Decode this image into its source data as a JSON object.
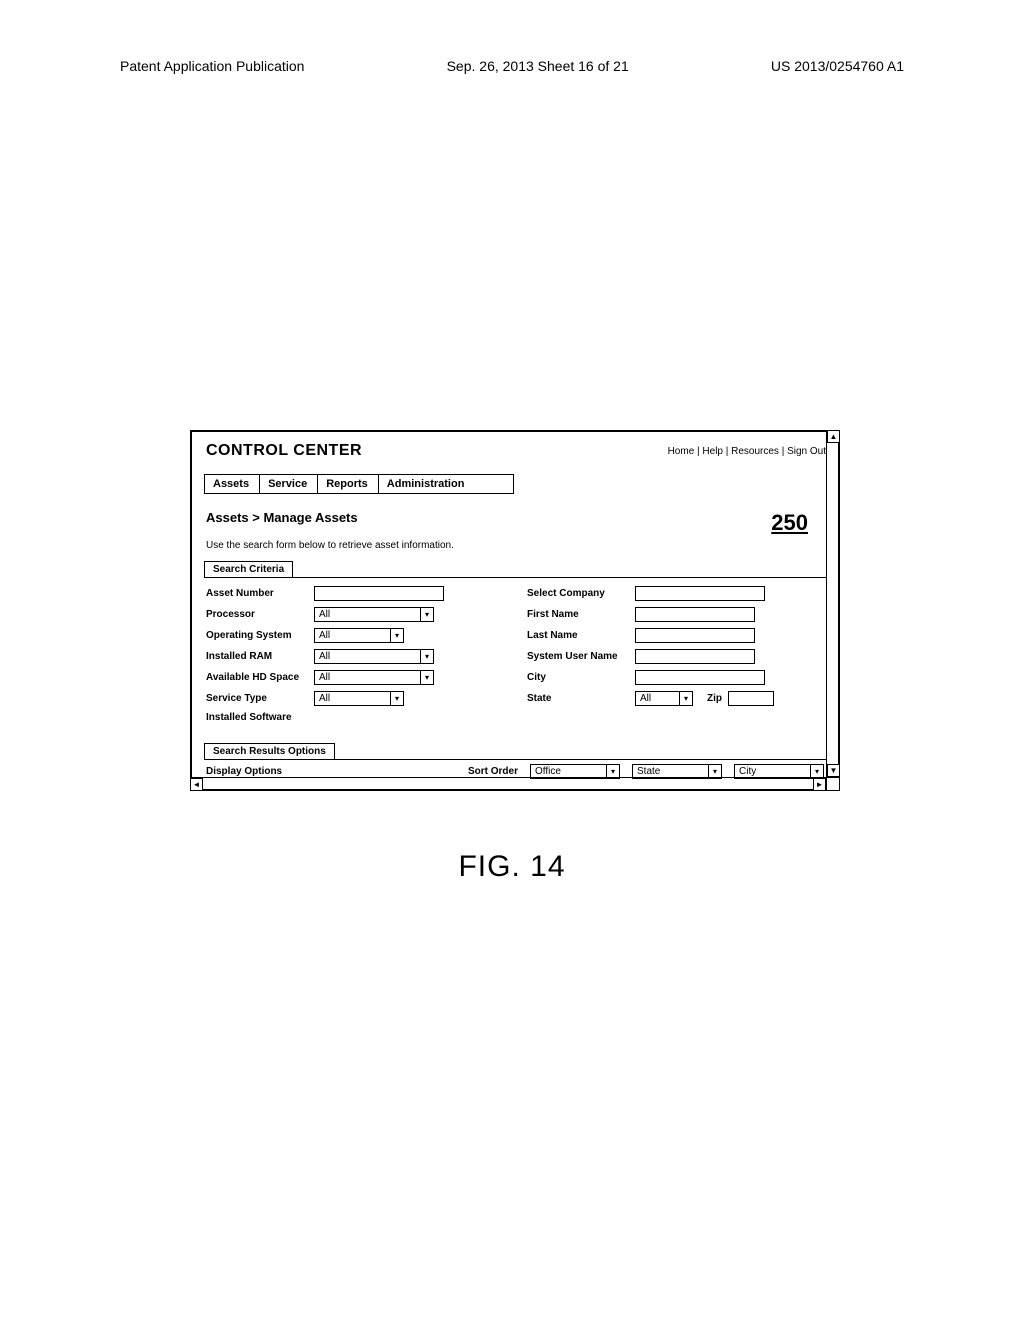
{
  "page_header": {
    "left": "Patent Application Publication",
    "center": "Sep. 26, 2013  Sheet 16 of 21",
    "right": "US 2013/0254760 A1"
  },
  "window": {
    "app_title": "CONTROL CENTER",
    "header_links": [
      "Home",
      "Help",
      "Resources",
      "Sign Out"
    ],
    "nav_tabs": [
      {
        "label": "Assets",
        "active": false
      },
      {
        "label": "Service",
        "active": false
      },
      {
        "label": "Reports",
        "active": false
      },
      {
        "label": "Administration",
        "active": true
      }
    ],
    "breadcrumb": "Assets > Manage Assets",
    "callout_number": "250",
    "instruction": "Use the search form below to retrieve asset information.",
    "search_criteria": {
      "section_title": "Search Criteria",
      "left_fields": [
        {
          "label": "Asset Number",
          "type": "text",
          "value": ""
        },
        {
          "label": "Processor",
          "type": "dropdown",
          "value": "All",
          "width": "dd-w1"
        },
        {
          "label": "Operating System",
          "type": "dropdown",
          "value": "All",
          "width": "dd-w2"
        },
        {
          "label": "Installed RAM",
          "type": "dropdown",
          "value": "All",
          "width": "dd-w1"
        },
        {
          "label": "Available HD Space",
          "type": "dropdown",
          "value": "All",
          "width": "dd-w1"
        },
        {
          "label": "Service Type",
          "type": "dropdown",
          "value": "All",
          "width": "dd-w2"
        },
        {
          "label": "Installed Software",
          "type": "none"
        }
      ],
      "right_fields": [
        {
          "label": "Select Company",
          "type": "text",
          "width": "w-lg"
        },
        {
          "label": "First Name",
          "type": "text",
          "width": "w-md"
        },
        {
          "label": "Last Name",
          "type": "text",
          "width": "w-md"
        },
        {
          "label": "System User Name",
          "type": "text",
          "width": "w-md"
        },
        {
          "label": "City",
          "type": "text",
          "width": "w-lg"
        }
      ],
      "state_row": {
        "state_label": "State",
        "state_value": "All",
        "zip_label": "Zip",
        "zip_value": ""
      }
    },
    "results_options": {
      "section_title": "Search Results Options",
      "display_options_label": "Display Options",
      "sort_order_label": "Sort Order",
      "sorts": [
        {
          "value": "Office"
        },
        {
          "value": "State"
        },
        {
          "value": "City"
        }
      ]
    }
  },
  "figure_caption": "FIG. 14"
}
